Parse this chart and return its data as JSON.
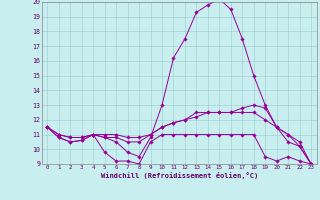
{
  "xlabel": "Windchill (Refroidissement éolien,°C)",
  "background_color": "#c8eef0",
  "line_color": "#990099",
  "grid_color": "#99cccc",
  "xlim": [
    -0.5,
    23.5
  ],
  "ylim": [
    9,
    20
  ],
  "xticks": [
    0,
    1,
    2,
    3,
    4,
    5,
    6,
    7,
    8,
    9,
    10,
    11,
    12,
    13,
    14,
    15,
    16,
    17,
    18,
    19,
    20,
    21,
    22,
    23
  ],
  "yticks": [
    9,
    10,
    11,
    12,
    13,
    14,
    15,
    16,
    17,
    18,
    19,
    20
  ],
  "lines": [
    [
      11.5,
      10.8,
      10.5,
      10.6,
      11.0,
      9.8,
      9.2,
      9.2,
      9.0,
      10.5,
      11.0,
      11.0,
      11.0,
      11.0,
      11.0,
      11.0,
      11.0,
      11.0,
      11.0,
      9.5,
      9.2,
      9.5,
      9.2,
      9.0
    ],
    [
      11.5,
      10.8,
      10.5,
      10.6,
      11.0,
      10.8,
      10.5,
      9.8,
      9.5,
      10.8,
      13.0,
      16.2,
      17.5,
      19.3,
      19.8,
      20.2,
      19.5,
      17.5,
      15.0,
      13.0,
      11.5,
      10.5,
      10.2,
      9.0
    ],
    [
      11.5,
      11.0,
      10.8,
      10.8,
      11.0,
      10.8,
      10.8,
      10.5,
      10.5,
      11.0,
      11.5,
      11.8,
      12.0,
      12.5,
      12.5,
      12.5,
      12.5,
      12.8,
      13.0,
      12.8,
      11.5,
      11.0,
      10.2,
      9.0
    ],
    [
      11.5,
      11.0,
      10.8,
      10.8,
      11.0,
      11.0,
      11.0,
      10.8,
      10.8,
      11.0,
      11.5,
      11.8,
      12.0,
      12.2,
      12.5,
      12.5,
      12.5,
      12.5,
      12.5,
      12.0,
      11.5,
      11.0,
      10.5,
      9.0
    ]
  ]
}
